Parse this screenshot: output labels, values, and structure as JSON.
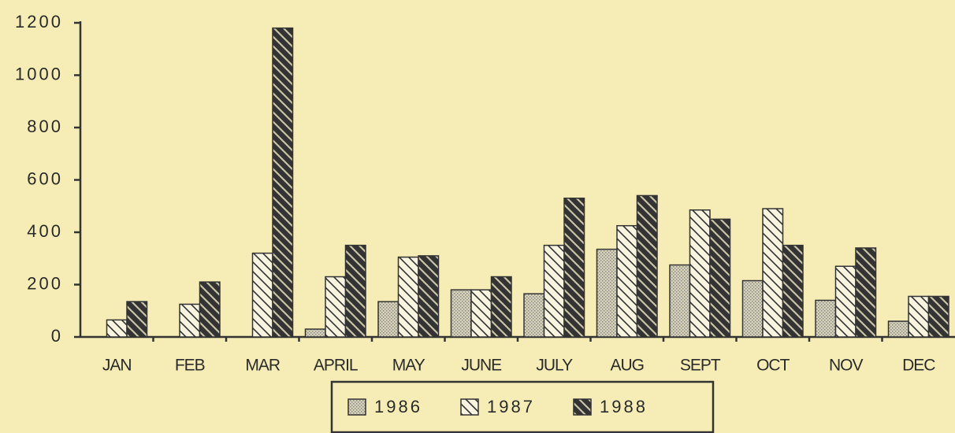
{
  "chart_data": {
    "type": "bar",
    "categories": [
      "JAN",
      "FEB",
      "MAR",
      "APRIL",
      "MAY",
      "JUNE",
      "JULY",
      "AUG",
      "SEPT",
      "OCT",
      "NOV",
      "DEC"
    ],
    "series": [
      {
        "name": "1986",
        "color": "#8a8a8a",
        "values": [
          0,
          0,
          0,
          30,
          135,
          180,
          165,
          335,
          275,
          215,
          140,
          60
        ]
      },
      {
        "name": "1987",
        "color": "#333333",
        "values": [
          65,
          125,
          320,
          230,
          305,
          180,
          350,
          425,
          485,
          490,
          270,
          155
        ]
      },
      {
        "name": "1988",
        "color": "#333333",
        "values": [
          135,
          210,
          1180,
          350,
          310,
          230,
          530,
          540,
          450,
          350,
          340,
          155
        ]
      }
    ],
    "ylim": [
      0,
      1200
    ],
    "yticks": [
      0,
      200,
      400,
      600,
      800,
      1000,
      1200
    ],
    "grid": false,
    "legend": "bottom"
  }
}
